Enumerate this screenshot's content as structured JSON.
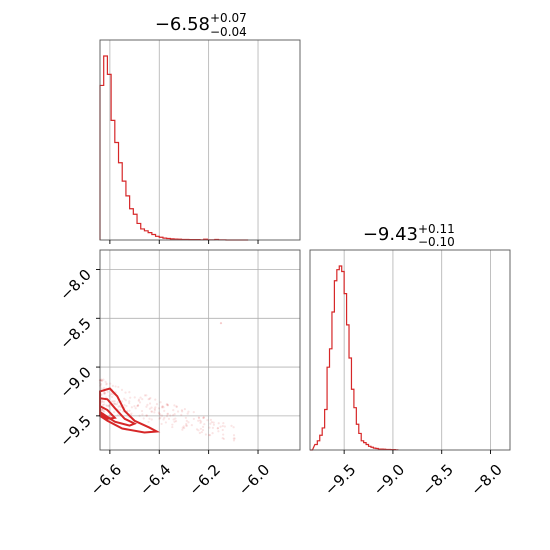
{
  "chart_data": [
    {
      "type": "histogram",
      "title": "−6.58",
      "title_sup": "+0.07",
      "title_sub": "−0.04",
      "color": "#d62728",
      "xlim": [
        -6.64,
        -5.83
      ],
      "xticks": [
        -6.6,
        -6.4,
        -6.2,
        -6.0
      ],
      "grid": true,
      "bins": [
        [
          -6.64,
          0.84
        ],
        [
          -6.625,
          1.0
        ],
        [
          -6.61,
          0.9
        ],
        [
          -6.595,
          0.65
        ],
        [
          -6.58,
          0.53
        ],
        [
          -6.565,
          0.42
        ],
        [
          -6.55,
          0.32
        ],
        [
          -6.535,
          0.24
        ],
        [
          -6.52,
          0.17
        ],
        [
          -6.505,
          0.14
        ],
        [
          -6.49,
          0.09
        ],
        [
          -6.475,
          0.06
        ],
        [
          -6.46,
          0.05
        ],
        [
          -6.445,
          0.04
        ],
        [
          -6.43,
          0.03
        ],
        [
          -6.415,
          0.02
        ],
        [
          -6.4,
          0.015
        ],
        [
          -6.385,
          0.01
        ],
        [
          -6.37,
          0.008
        ],
        [
          -6.355,
          0.006
        ],
        [
          -6.34,
          0.005
        ],
        [
          -6.325,
          0.004
        ],
        [
          -6.31,
          0.003
        ],
        [
          -6.295,
          0.003
        ],
        [
          -6.28,
          0.002
        ],
        [
          -6.265,
          0.002
        ],
        [
          -6.25,
          0.002
        ],
        [
          -6.235,
          0.001
        ],
        [
          -6.22,
          0.004
        ],
        [
          -6.205,
          0.001
        ],
        [
          -6.19,
          0.001
        ],
        [
          -6.175,
          0.003
        ],
        [
          -6.16,
          0.001
        ],
        [
          -6.145,
          0.001
        ],
        [
          -6.13,
          0.0
        ],
        [
          -6.115,
          0.0
        ],
        [
          -6.1,
          0.0
        ],
        [
          -6.085,
          0.0
        ],
        [
          -6.07,
          0.0
        ],
        [
          -6.055,
          0.0
        ]
      ]
    },
    {
      "type": "scatter",
      "color": "#d62728",
      "xlim": [
        -6.64,
        -5.83
      ],
      "ylim": [
        -9.85,
        -7.8
      ],
      "xticks": [
        -6.6,
        -6.4,
        -6.2,
        -6.0
      ],
      "yticks": [
        -8.0,
        -8.5,
        -9.0,
        -9.5
      ],
      "grid": true,
      "contours": [
        [
          [
            -6.64,
            -9.25
          ],
          [
            -6.6,
            -9.22
          ],
          [
            -6.57,
            -9.3
          ],
          [
            -6.54,
            -9.45
          ],
          [
            -6.5,
            -9.55
          ],
          [
            -6.44,
            -9.62
          ],
          [
            -6.41,
            -9.66
          ],
          [
            -6.46,
            -9.67
          ],
          [
            -6.55,
            -9.63
          ],
          [
            -6.61,
            -9.55
          ],
          [
            -6.64,
            -9.5
          ]
        ],
        [
          [
            -6.64,
            -9.32
          ],
          [
            -6.61,
            -9.33
          ],
          [
            -6.58,
            -9.42
          ],
          [
            -6.54,
            -9.53
          ],
          [
            -6.5,
            -9.58
          ],
          [
            -6.52,
            -9.6
          ],
          [
            -6.58,
            -9.56
          ],
          [
            -6.64,
            -9.46
          ]
        ],
        [
          [
            -6.64,
            -9.4
          ],
          [
            -6.61,
            -9.44
          ],
          [
            -6.58,
            -9.52
          ],
          [
            -6.61,
            -9.53
          ],
          [
            -6.64,
            -9.48
          ]
        ]
      ]
    },
    {
      "type": "histogram",
      "title": "−9.43",
      "title_sup": "+0.11",
      "title_sub": "−0.10",
      "color": "#d62728",
      "xlim": [
        -9.85,
        -7.8
      ],
      "xticks": [
        -9.5,
        -9.0,
        -8.5,
        -8.0
      ],
      "grid": true,
      "bins": [
        [
          -9.85,
          0.0
        ],
        [
          -9.8,
          0.03
        ],
        [
          -9.775,
          0.05
        ],
        [
          -9.75,
          0.08
        ],
        [
          -9.725,
          0.12
        ],
        [
          -9.7,
          0.22
        ],
        [
          -9.675,
          0.45
        ],
        [
          -9.65,
          0.55
        ],
        [
          -9.625,
          0.75
        ],
        [
          -9.6,
          0.92
        ],
        [
          -9.575,
          0.98
        ],
        [
          -9.55,
          1.0
        ],
        [
          -9.525,
          0.97
        ],
        [
          -9.5,
          0.85
        ],
        [
          -9.475,
          0.68
        ],
        [
          -9.45,
          0.5
        ],
        [
          -9.425,
          0.33
        ],
        [
          -9.4,
          0.23
        ],
        [
          -9.375,
          0.14
        ],
        [
          -9.35,
          0.09
        ],
        [
          -9.325,
          0.05
        ],
        [
          -9.3,
          0.04
        ],
        [
          -9.275,
          0.03
        ],
        [
          -9.25,
          0.02
        ],
        [
          -9.225,
          0.015
        ],
        [
          -9.2,
          0.01
        ],
        [
          -9.175,
          0.008
        ],
        [
          -9.15,
          0.005
        ],
        [
          -9.125,
          0.005
        ],
        [
          -9.1,
          0.004
        ],
        [
          -9.075,
          0.003
        ],
        [
          -9.05,
          0.003
        ],
        [
          -9.025,
          0.002
        ],
        [
          -9.0,
          0.002
        ],
        [
          -8.975,
          0.001
        ]
      ]
    }
  ]
}
